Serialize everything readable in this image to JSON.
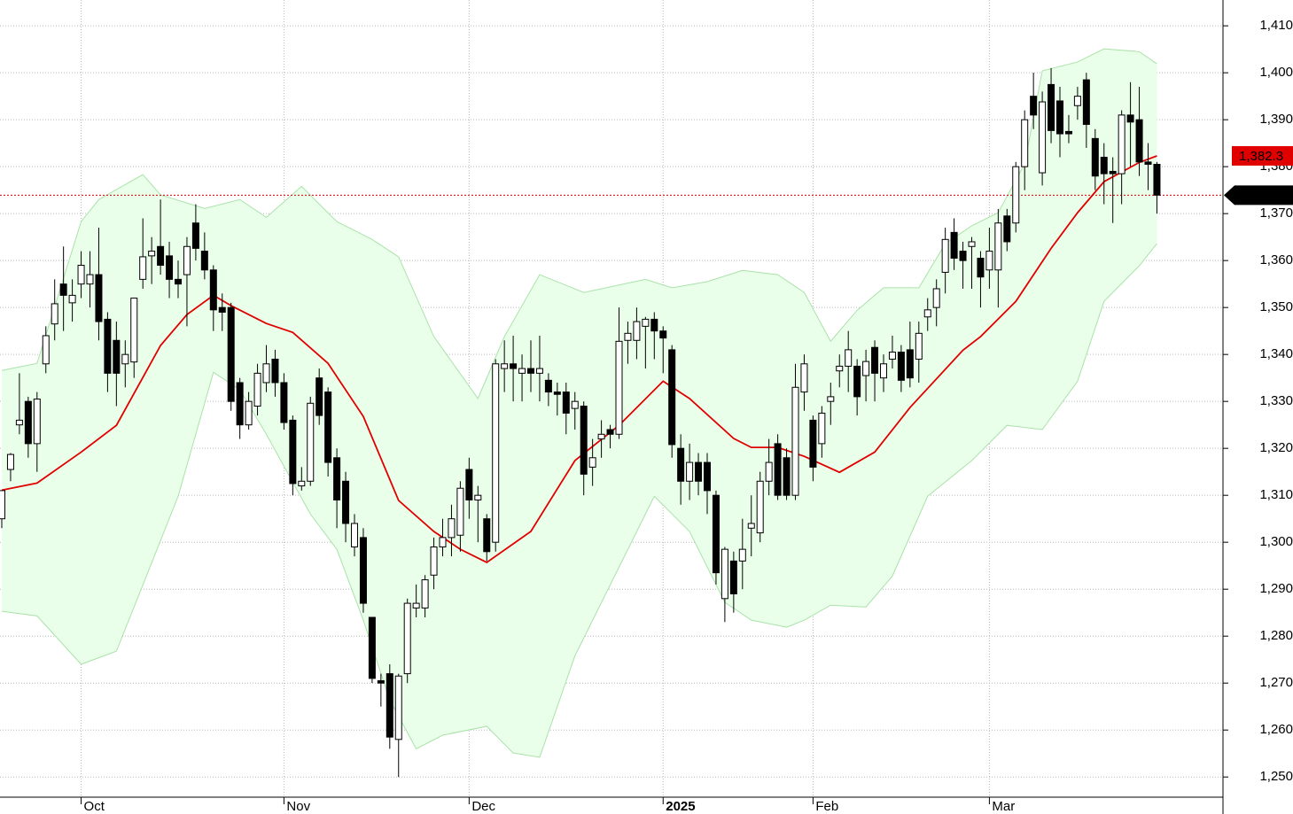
{
  "chart_data": {
    "type": "candlestick",
    "categories": [
      null,
      null,
      null,
      null,
      null,
      null,
      null,
      null,
      null,
      "Oct",
      null,
      null,
      null,
      null,
      null,
      null,
      null,
      null,
      null,
      null,
      null,
      null,
      null,
      null,
      null,
      null,
      null,
      null,
      null,
      null,
      null,
      null,
      "Nov",
      null,
      null,
      null,
      null,
      null,
      null,
      null,
      null,
      null,
      null,
      null,
      null,
      null,
      null,
      null,
      null,
      null,
      null,
      null,
      null,
      "Dec",
      null,
      null,
      null,
      null,
      null,
      null,
      null,
      null,
      null,
      null,
      null,
      null,
      null,
      null,
      null,
      null,
      null,
      null,
      null,
      null,
      null,
      "2025",
      null,
      null,
      null,
      null,
      null,
      null,
      null,
      null,
      null,
      null,
      null,
      null,
      null,
      null,
      null,
      null,
      "Feb",
      null,
      null,
      null,
      null,
      null,
      null,
      null,
      null,
      null,
      null,
      null,
      null,
      null,
      null,
      null,
      null,
      null,
      null,
      null,
      "Mar",
      null,
      null,
      null,
      null,
      null,
      null,
      null,
      null,
      null,
      null,
      null,
      null,
      null,
      null,
      null,
      null,
      null,
      null,
      null
    ],
    "open": [
      1305,
      1315.5,
      1325,
      1330,
      1321,
      1338,
      1346.5,
      1355,
      1351,
      1355,
      1355,
      1357,
      1347.5,
      1343,
      1338,
      1338.4,
      1356,
      1361,
      1363,
      1361,
      1356,
      1357,
      1368,
      1362,
      1358,
      1350,
      1350,
      1334,
      1325,
      1329,
      1334,
      1339,
      1334,
      1326,
      1312,
      1313,
      1335,
      1332,
      1318,
      1313,
      1299,
      1301,
      1284,
      1270.5,
      1272,
      1258,
      1272,
      1286,
      1286,
      1293,
      1299,
      1301,
      1301.5,
      1315.5,
      1309,
      1305,
      1300,
      1337,
      1338,
      1336,
      1337,
      1336,
      1334.5,
      1332,
      1332,
      1328.5,
      1329,
      1316,
      1322,
      1324,
      1323,
      1343,
      1343,
      1346,
      1347.5,
      1345,
      1341,
      1320,
      1313,
      1317,
      1317,
      1310,
      1288,
      1296,
      1296,
      1303,
      1302,
      1313,
      1321,
      1318,
      1310,
      1332,
      1326,
      1321,
      1330,
      1336.5,
      1337.5,
      1337.5,
      1335.5,
      1341.5,
      1335,
      1339,
      1340.5,
      1341,
      1339,
      1348,
      1350,
      1357.5,
      1366,
      1362,
      1363,
      1360.5,
      1358,
      1358,
      1369.5,
      1368,
      1380,
      1395,
      1378.7,
      1397.5,
      1394,
      1387.5,
      1393,
      1398.5,
      1386,
      1382,
      1379,
      1378.5,
      1391,
      1390,
      1381,
      1380.5
    ],
    "high": [
      1311,
      1319,
      1336,
      1331,
      1332,
      1346,
      1356,
      1363,
      1356,
      1362,
      1362,
      1367,
      1349,
      1347,
      1343,
      1352,
      1369,
      1365,
      1373,
      1364,
      1360,
      1365,
      1372,
      1366,
      1359,
      1353,
      1351,
      1335,
      1332,
      1338,
      1342,
      1341,
      1336,
      1327,
      1316,
      1331,
      1337,
      1333,
      1320,
      1315,
      1306,
      1303,
      1284,
      1272,
      1274,
      1272,
      1288,
      1291,
      1293,
      1301,
      1305,
      1308,
      1313,
      1318,
      1312,
      1306,
      1339,
      1343,
      1344,
      1340,
      1343,
      1344,
      1336,
      1334,
      1334,
      1332,
      1330,
      1322,
      1326,
      1325,
      1350,
      1347,
      1350,
      1348,
      1349,
      1346,
      1342,
      1323,
      1321,
      1319,
      1319,
      1311,
      1299,
      1298,
      1305,
      1310,
      1315,
      1322,
      1323,
      1320,
      1338,
      1340,
      1327,
      1329,
      1334,
      1340,
      1345,
      1339,
      1341,
      1343,
      1340,
      1344,
      1342,
      1347,
      1347,
      1352,
      1356,
      1367,
      1369,
      1364,
      1365,
      1362,
      1367,
      1371,
      1371,
      1381,
      1392,
      1400,
      1396,
      1401,
      1397,
      1391,
      1397,
      1400,
      1388,
      1385,
      1382,
      1392,
      1398,
      1397,
      1385,
      1381
    ],
    "low": [
      1303,
      1313,
      1323,
      1318,
      1315,
      1336,
      1343,
      1345,
      1347,
      1352,
      1350,
      1343,
      1332,
      1329,
      1333,
      1335,
      1354,
      1355,
      1357,
      1352,
      1352,
      1346,
      1360,
      1356,
      1345,
      1345,
      1328,
      1322,
      1324,
      1327,
      1332,
      1331,
      1324,
      1310,
      1311,
      1312,
      1325,
      1314,
      1303,
      1300,
      1297,
      1285,
      1270,
      1265,
      1256,
      1250,
      1270,
      1284,
      1284,
      1290,
      1297,
      1297,
      1298,
      1305,
      1300,
      1296,
      1298,
      1332,
      1330,
      1330,
      1332,
      1330,
      1329,
      1327,
      1323,
      1324,
      1310,
      1312,
      1318,
      1320,
      1322,
      1338,
      1339,
      1337,
      1339,
      1336,
      1318,
      1308,
      1309,
      1310,
      1306,
      1291,
      1283,
      1285,
      1290,
      1297,
      1300,
      1310,
      1309,
      1309,
      1309,
      1328,
      1313,
      1318,
      1325,
      1333,
      1332,
      1327,
      1330,
      1330,
      1332,
      1337,
      1332,
      1333,
      1334,
      1345,
      1346,
      1353,
      1358,
      1354,
      1354,
      1350,
      1354,
      1350,
      1362,
      1366,
      1375,
      1388,
      1376,
      1385,
      1382,
      1385,
      1390,
      1384,
      1375,
      1372,
      1368,
      1372,
      1380,
      1378,
      1375,
      1370
    ],
    "close": [
      1311,
      1318.7,
      1326,
      1321,
      1330.5,
      1344,
      1350.8,
      1352.6,
      1352.6,
      1359,
      1357,
      1347,
      1336,
      1336,
      1340,
      1352,
      1360.8,
      1362,
      1359,
      1356,
      1355,
      1363,
      1362.6,
      1358,
      1349.5,
      1349,
      1330,
      1325,
      1330,
      1336,
      1338,
      1334,
      1325.5,
      1312.5,
      1313,
      1329.6,
      1327,
      1317,
      1309,
      1304,
      1304,
      1287,
      1271,
      1270,
      1258.5,
      1271.5,
      1287,
      1287,
      1292,
      1299,
      1301,
      1305,
      1311.5,
      1309,
      1310,
      1298,
      1338,
      1338,
      1337,
      1337,
      1336,
      1337,
      1332,
      1331.5,
      1327.5,
      1330,
      1314.5,
      1318,
      1323,
      1323,
      1342.8,
      1344.5,
      1347,
      1347.5,
      1345,
      1343.5,
      1320.8,
      1313,
      1317,
      1313,
      1311,
      1293.5,
      1298.5,
      1289,
      1298.5,
      1304,
      1313,
      1317,
      1310,
      1310,
      1333,
      1338,
      1316,
      1327.5,
      1331,
      1337.5,
      1341,
      1331,
      1338.5,
      1336,
      1338,
      1340.5,
      1334.5,
      1335,
      1344.5,
      1349.5,
      1354,
      1364.5,
      1360.5,
      1360,
      1364,
      1356.5,
      1362,
      1368,
      1364,
      1380,
      1390,
      1391,
      1393.8,
      1387.7,
      1387,
      1387,
      1395,
      1389,
      1378,
      1378.5,
      1378.5,
      1391,
      1389.5,
      1381,
      1380.5,
      1373.93
    ],
    "up_color": "#ffffff",
    "down_color": "#000000",
    "bands": {
      "color": "#eaffea",
      "edge_color": "#a9e2a9",
      "upper": {
        "x": [
          0,
          4,
          9,
          11,
          16,
          18,
          23,
          27,
          30,
          34,
          38,
          42,
          45,
          49,
          54,
          57,
          61,
          66,
          73,
          76,
          80,
          84,
          88,
          91,
          94,
          97,
          100,
          104,
          107,
          110,
          113,
          116,
          118,
          122,
          125,
          129,
          131
        ],
        "values": [
          1336.6,
          1338.1,
          1368.3,
          1373.0,
          1378.3,
          1374.0,
          1371.1,
          1373.0,
          1369.2,
          1375.8,
          1368.3,
          1364.5,
          1360.8,
          1343.8,
          1330.6,
          1343.8,
          1357.0,
          1353.2,
          1356.0,
          1354.2,
          1355.5,
          1357.9,
          1357.0,
          1353.2,
          1342.8,
          1349.4,
          1354.2,
          1354.2,
          1363.6,
          1367.4,
          1370.2,
          1380.6,
          1400.4,
          1402.3,
          1405.1,
          1404.5,
          1401.9
        ]
      },
      "lower": {
        "x": [
          0,
          4,
          9,
          13,
          16,
          20,
          24,
          27,
          30,
          35,
          38,
          41,
          44,
          47,
          50,
          55,
          58,
          61,
          65,
          70,
          74,
          78,
          82,
          85,
          89,
          91,
          94,
          98,
          101,
          105,
          110,
          114,
          118,
          122,
          125,
          129,
          131
        ],
        "values": [
          1285.3,
          1284.3,
          1274.0,
          1276.8,
          1290.9,
          1309.8,
          1336.2,
          1332.5,
          1323.0,
          1306.0,
          1298.5,
          1283.4,
          1266.4,
          1256.0,
          1258.9,
          1260.8,
          1255.1,
          1254.2,
          1275.8,
          1294.7,
          1309.8,
          1302.3,
          1287.2,
          1283.4,
          1281.9,
          1283.4,
          1286.6,
          1286.2,
          1292.8,
          1309.8,
          1317.4,
          1324.9,
          1324.0,
          1334.3,
          1351.3,
          1358.9,
          1363.6
        ]
      },
      "middle": {
        "color": "#e00000",
        "x": [
          0,
          4,
          9,
          13,
          18,
          21,
          24,
          26,
          30,
          33,
          37,
          41,
          45,
          49,
          52,
          55,
          60,
          65,
          70,
          75,
          78,
          83,
          85,
          88,
          91,
          95,
          99,
          103,
          109,
          111,
          115,
          119,
          122,
          125,
          129,
          131
        ],
        "values": [
          1311.1,
          1312.6,
          1319.2,
          1324.9,
          1341.9,
          1348.5,
          1352.6,
          1350.4,
          1346.6,
          1344.7,
          1338.1,
          1326.8,
          1308.9,
          1302.3,
          1298.5,
          1295.7,
          1302.3,
          1317.4,
          1324.9,
          1334.3,
          1330.6,
          1322.1,
          1320.2,
          1320.2,
          1318.3,
          1314.9,
          1319.2,
          1328.7,
          1340.9,
          1343.8,
          1351.3,
          1362.6,
          1370.2,
          1376.8,
          1380.9,
          1382.3
        ]
      }
    },
    "middle_last": {
      "value": 1382.3,
      "label": "1,382.3"
    },
    "last_price": {
      "value": 1373.93,
      "label": "1,373.93"
    },
    "last_price_color": "#d00000",
    "ylim": [
      1245.7,
      1415.5
    ],
    "yticks": [
      {
        "value": 1250,
        "label": "1,250"
      },
      {
        "value": 1260,
        "label": "1,260"
      },
      {
        "value": 1270,
        "label": "1,270"
      },
      {
        "value": 1280,
        "label": "1,280"
      },
      {
        "value": 1290,
        "label": "1,290"
      },
      {
        "value": 1300,
        "label": "1,300"
      },
      {
        "value": 1310,
        "label": "1,310"
      },
      {
        "value": 1320,
        "label": "1,320"
      },
      {
        "value": 1330,
        "label": "1,330"
      },
      {
        "value": 1340,
        "label": "1,340"
      },
      {
        "value": 1350,
        "label": "1,350"
      },
      {
        "value": 1360,
        "label": "1,360"
      },
      {
        "value": 1370,
        "label": "1,370"
      },
      {
        "value": 1380,
        "label": "1,380"
      },
      {
        "value": 1390,
        "label": "1,390"
      },
      {
        "value": 1400,
        "label": "1,400"
      },
      {
        "value": 1410,
        "label": "1,410"
      }
    ],
    "grid": true
  }
}
